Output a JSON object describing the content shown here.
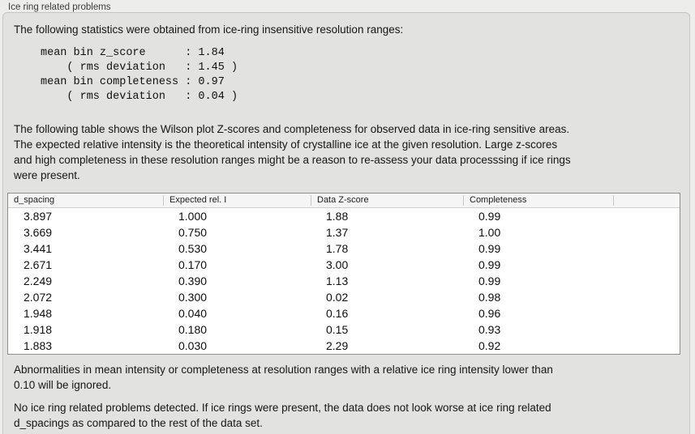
{
  "section": {
    "title": "Ice ring related problems"
  },
  "panel": {
    "intro": "The following statistics were obtained from ice-ring insensitive resolution ranges:",
    "stats_block": "mean bin z_score      : 1.84\n    ( rms deviation   : 1.45 )\nmean bin completeness : 0.97\n    ( rms deviation   : 0.04 )",
    "table_description": "The following table shows the Wilson plot Z-scores and completeness for observed data in ice-ring sensitive areas.\nThe expected relative intensity is the theoretical intensity of crystalline ice at the given resolution. Large z-scores\nand high completeness in these resolution ranges might be a reason to re-assess your data processsing if ice rings\nwere present.",
    "ignore_note": "Abnormalities in mean intensity or completeness at resolution ranges with a relative ice ring intensity lower than\n0.10 will be ignored.",
    "conclusion": "No ice ring related problems detected. If ice rings were present, the data does not look worse at ice ring related\nd_spacings as compared to the rest of the data set."
  },
  "table": {
    "columns": [
      "d_spacing",
      "Expected rel. I",
      "Data Z-score",
      "Completeness",
      ""
    ],
    "rows": [
      [
        "3.897",
        "1.000",
        "1.88",
        "0.99"
      ],
      [
        "3.669",
        "0.750",
        "1.37",
        "1.00"
      ],
      [
        "3.441",
        "0.530",
        "1.78",
        "0.99"
      ],
      [
        "2.671",
        "0.170",
        "3.00",
        "0.99"
      ],
      [
        "2.249",
        "0.390",
        "1.13",
        "0.99"
      ],
      [
        "2.072",
        "0.300",
        "0.02",
        "0.98"
      ],
      [
        "1.948",
        "0.040",
        "0.16",
        "0.96"
      ],
      [
        "1.918",
        "0.180",
        "0.15",
        "0.93"
      ],
      [
        "1.883",
        "0.030",
        "2.29",
        "0.92"
      ]
    ]
  },
  "stats": {
    "mean_bin_z_score": "1.84",
    "z_score_rms_deviation": "1.45",
    "mean_bin_completeness": "0.97",
    "completeness_rms_deviation": "0.04"
  },
  "colors": {
    "page_bg": "#ededec",
    "panel_bg": "#e2e2e1",
    "panel_border": "#c5c5c4",
    "table_border": "#8f8f8f",
    "table_header_bg": "#f5f5f5",
    "text": "#161616"
  }
}
